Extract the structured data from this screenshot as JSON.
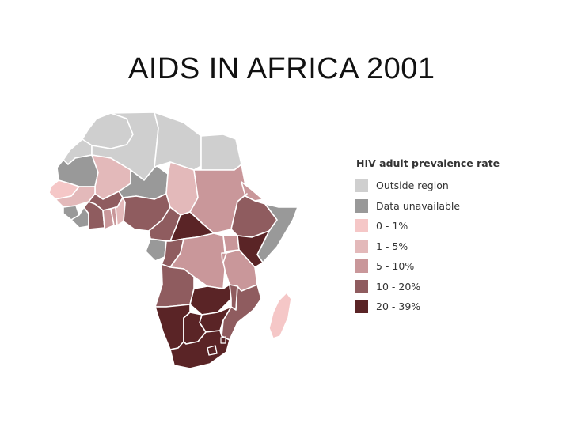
{
  "slide": {
    "title": "AIDS IN AFRICA 2001"
  },
  "legend": {
    "title": "HIV adult prevalence rate",
    "items": [
      {
        "label": "Outside region",
        "color": "#cfcfcf"
      },
      {
        "label": "Data unavailable",
        "color": "#999999"
      },
      {
        "label": "0 - 1%",
        "color": "#f5c7c7"
      },
      {
        "label": "1 - 5%",
        "color": "#e3b9ba"
      },
      {
        "label": "5 - 10%",
        "color": "#c9979a"
      },
      {
        "label": "10 - 20%",
        "color": "#8f5c5f"
      },
      {
        "label": "20 - 39%",
        "color": "#5a2426"
      }
    ]
  },
  "map": {
    "regions": [
      {
        "name": "morocco",
        "category": "Outside region"
      },
      {
        "name": "algeria",
        "category": "Outside region"
      },
      {
        "name": "libya",
        "category": "Outside region"
      },
      {
        "name": "egypt",
        "category": "Outside region"
      },
      {
        "name": "western-sahara",
        "category": "Outside region"
      },
      {
        "name": "mauritania",
        "category": "Data unavailable"
      },
      {
        "name": "mali",
        "category": "1 - 5%"
      },
      {
        "name": "niger",
        "category": "Data unavailable"
      },
      {
        "name": "chad",
        "category": "1 - 5%"
      },
      {
        "name": "sudan",
        "category": "5 - 10%"
      },
      {
        "name": "senegal",
        "category": "0 - 1%"
      },
      {
        "name": "guinea",
        "category": "1 - 5%"
      },
      {
        "name": "sierra-leone",
        "category": "Data unavailable"
      },
      {
        "name": "liberia",
        "category": "Data unavailable"
      },
      {
        "name": "cote-divoire",
        "category": "10 - 20%"
      },
      {
        "name": "burkina-faso",
        "category": "10 - 20%"
      },
      {
        "name": "ghana",
        "category": "5 - 10%"
      },
      {
        "name": "togo",
        "category": "5 - 10%"
      },
      {
        "name": "benin",
        "category": "1 - 5%"
      },
      {
        "name": "nigeria",
        "category": "10 - 20%"
      },
      {
        "name": "cameroon",
        "category": "10 - 20%"
      },
      {
        "name": "central-african-republic",
        "category": "20 - 39%"
      },
      {
        "name": "gabon",
        "category": "Data unavailable"
      },
      {
        "name": "congo",
        "category": "10 - 20%"
      },
      {
        "name": "dr-congo",
        "category": "5 - 10%"
      },
      {
        "name": "ethiopia",
        "category": "10 - 20%"
      },
      {
        "name": "eritrea",
        "category": "5 - 10%"
      },
      {
        "name": "somalia",
        "category": "Data unavailable"
      },
      {
        "name": "kenya",
        "category": "20 - 39%"
      },
      {
        "name": "uganda",
        "category": "5 - 10%"
      },
      {
        "name": "rwanda",
        "category": "5 - 10%"
      },
      {
        "name": "tanzania",
        "category": "5 - 10%"
      },
      {
        "name": "angola",
        "category": "10 - 20%"
      },
      {
        "name": "zambia",
        "category": "20 - 39%"
      },
      {
        "name": "malawi",
        "category": "10 - 20%"
      },
      {
        "name": "mozambique",
        "category": "10 - 20%"
      },
      {
        "name": "zimbabwe",
        "category": "20 - 39%"
      },
      {
        "name": "namibia",
        "category": "20 - 39%"
      },
      {
        "name": "botswana",
        "category": "20 - 39%"
      },
      {
        "name": "south-africa",
        "category": "20 - 39%"
      },
      {
        "name": "lesotho",
        "category": "20 - 39%"
      },
      {
        "name": "swaziland",
        "category": "20 - 39%"
      },
      {
        "name": "madagascar",
        "category": "0 - 1%"
      }
    ]
  }
}
